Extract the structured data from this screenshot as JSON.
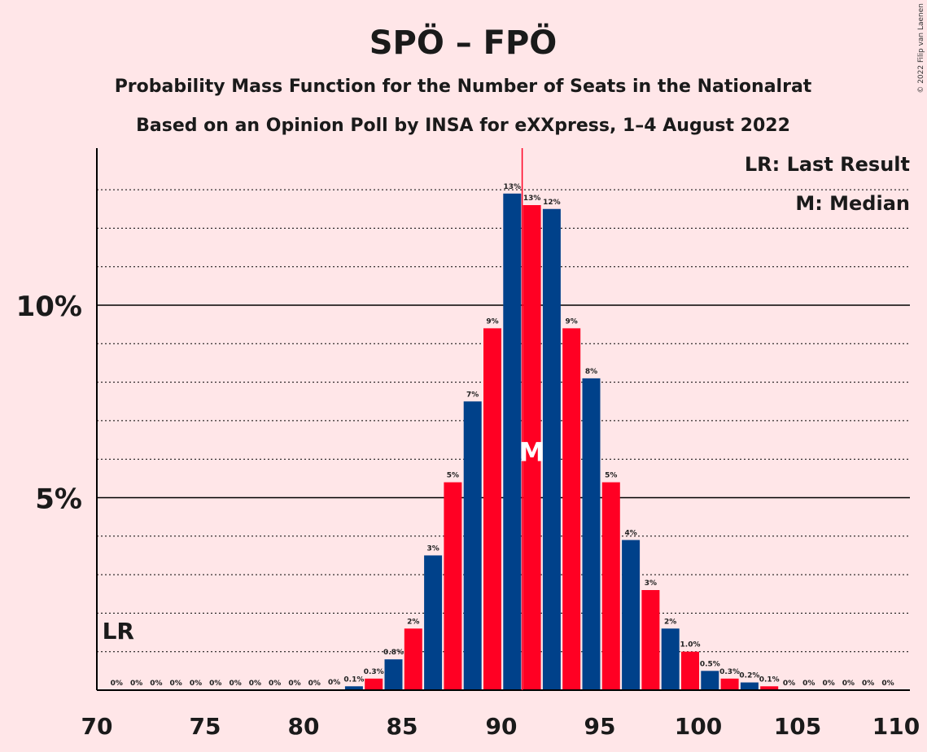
{
  "chart_data": {
    "type": "bar",
    "title": "SPÖ – FPÖ",
    "subtitle": "Probability Mass Function for the Number of Seats in the Nationalrat",
    "subtitle2": "Based on an Opinion Poll by INSA for eXXpress, 1–4 August 2022",
    "copyright": "© 2022 Filip van Laenen",
    "legend": {
      "lr": "LR: Last Result",
      "median": "M: Median"
    },
    "lr_label": "LR",
    "median_label": "M",
    "last_result_x": 71,
    "median_x": 92,
    "xlim": [
      70,
      110
    ],
    "ylim": [
      0,
      14
    ],
    "x_ticks": [
      "70",
      "75",
      "80",
      "85",
      "90",
      "95",
      "100",
      "105",
      "110"
    ],
    "y_ticks": [
      {
        "value": 5,
        "label": "5%"
      },
      {
        "value": 10,
        "label": "10%"
      }
    ],
    "colors": {
      "blue": "#00418A",
      "red": "#FF0023",
      "axis": "#000000"
    },
    "x": [
      71,
      72,
      73,
      74,
      75,
      76,
      77,
      78,
      79,
      80,
      81,
      82,
      83,
      84,
      85,
      86,
      87,
      88,
      89,
      90,
      91,
      92,
      93,
      94,
      95,
      96,
      97,
      98,
      99,
      100,
      101,
      102,
      103,
      104,
      105,
      106,
      107,
      108,
      109,
      110
    ],
    "values": [
      0,
      0,
      0,
      0,
      0,
      0,
      0,
      0,
      0,
      0,
      0,
      0.02,
      0.1,
      0.3,
      0.8,
      1.6,
      3.5,
      5.4,
      7.5,
      9.4,
      12.9,
      12.6,
      12.5,
      9.4,
      8.1,
      5.4,
      3.9,
      2.6,
      1.6,
      1.0,
      0.5,
      0.3,
      0.2,
      0.1,
      0,
      0,
      0,
      0,
      0,
      0
    ],
    "labels": [
      "0%",
      "0%",
      "0%",
      "0%",
      "0%",
      "0%",
      "0%",
      "0%",
      "0%",
      "0%",
      "0%",
      "0%",
      "0.1%",
      "0.3%",
      "0.8%",
      "2%",
      "3%",
      "5%",
      "7%",
      "9%",
      "13%",
      "13%",
      "12%",
      "9%",
      "8%",
      "5%",
      "4%",
      "3%",
      "2%",
      "1.0%",
      "0.5%",
      "0.3%",
      "0.2%",
      "0.1%",
      "0%",
      "0%",
      "0%",
      "0%",
      "0%",
      "0%"
    ]
  }
}
